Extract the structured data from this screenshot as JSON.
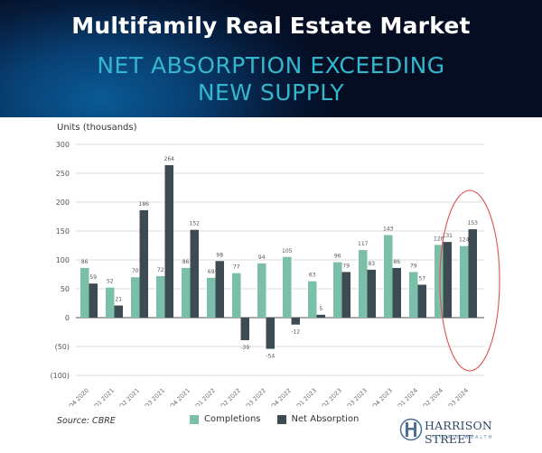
{
  "header": {
    "title": "Multifamily Real Estate Market",
    "subtitle_line1": "NET ABSORPTION EXCEEDING",
    "subtitle_line2": "NEW SUPPLY"
  },
  "footer": {
    "source": "Source: CBRE",
    "logo_name": "HARRISON STREET",
    "logo_tagline": "PRIVATE  WEALTH"
  },
  "colors": {
    "completions": "#7bbfaa",
    "net_absorption": "#3c4c52",
    "highlight_circle": "#e05050",
    "subtitle": "#33b7cc"
  },
  "chart_data": {
    "type": "bar",
    "title": "Net Absorption Exceeding New Supply",
    "ylabel": "Units (thousands)",
    "xlabel": "",
    "ylim": [
      -100,
      300
    ],
    "yticks": [
      300,
      250,
      200,
      150,
      100,
      50,
      0,
      -50,
      -100
    ],
    "ytick_labels": [
      "300",
      "250",
      "200",
      "150",
      "100",
      "50",
      "0",
      "(50)",
      "(100)"
    ],
    "grid": true,
    "legend_position": "bottom",
    "categories": [
      "Q4 2020",
      "Q1 2021",
      "Q2 2021",
      "Q3 2021",
      "Q4 2021",
      "Q1 2022",
      "Q2 2022",
      "Q3 2022",
      "Q4 2022",
      "Q1 2023",
      "Q2 2023",
      "Q3 2023",
      "Q4 2023",
      "Q1 2024",
      "Q2 2024",
      "Q3 2024"
    ],
    "series": [
      {
        "name": "Completions",
        "values": [
          86,
          52,
          70,
          72,
          86,
          69,
          77,
          94,
          105,
          63,
          96,
          117,
          143,
          79,
          126,
          124
        ]
      },
      {
        "name": "Net Absorption",
        "values": [
          59,
          21,
          186,
          264,
          152,
          98,
          -39,
          -54,
          -12,
          5,
          79,
          83,
          86,
          57,
          131,
          153
        ]
      }
    ],
    "annotations": [
      "Red ellipse highlighting Q2 2024 and Q3 2024"
    ]
  }
}
